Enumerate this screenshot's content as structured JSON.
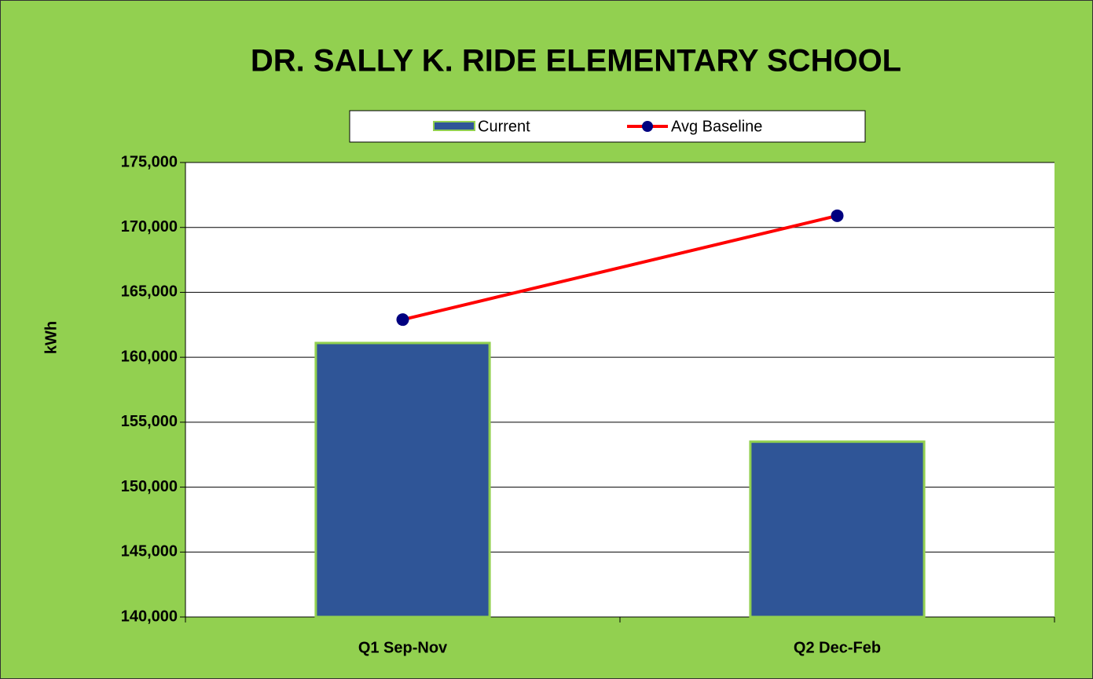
{
  "chart_data": {
    "type": "bar",
    "title": "DR. SALLY K. RIDE ELEMENTARY SCHOOL",
    "y_label": "kWh",
    "categories": [
      "Q1 Sep-Nov",
      "Q2 Dec-Feb"
    ],
    "series": [
      {
        "name": "Current",
        "type": "bar",
        "color": "#2f5597",
        "edge_color": "#92d050",
        "values": [
          161100,
          153500
        ]
      },
      {
        "name": "Avg Baseline",
        "type": "line",
        "color": "#ff0000",
        "marker_color": "#000080",
        "values": [
          162900,
          170900
        ]
      }
    ],
    "ylim": [
      140000,
      175000
    ],
    "yticks": [
      {
        "value": 140000,
        "label": "140,000"
      },
      {
        "value": 145000,
        "label": "145,000"
      },
      {
        "value": 150000,
        "label": "150,000"
      },
      {
        "value": 155000,
        "label": "155,000"
      },
      {
        "value": 160000,
        "label": "160,000"
      },
      {
        "value": 165000,
        "label": "165,000"
      },
      {
        "value": 170000,
        "label": "170,000"
      },
      {
        "value": 175000,
        "label": "175,000"
      }
    ],
    "grid": true,
    "legend": "top",
    "background": "#92d050"
  }
}
